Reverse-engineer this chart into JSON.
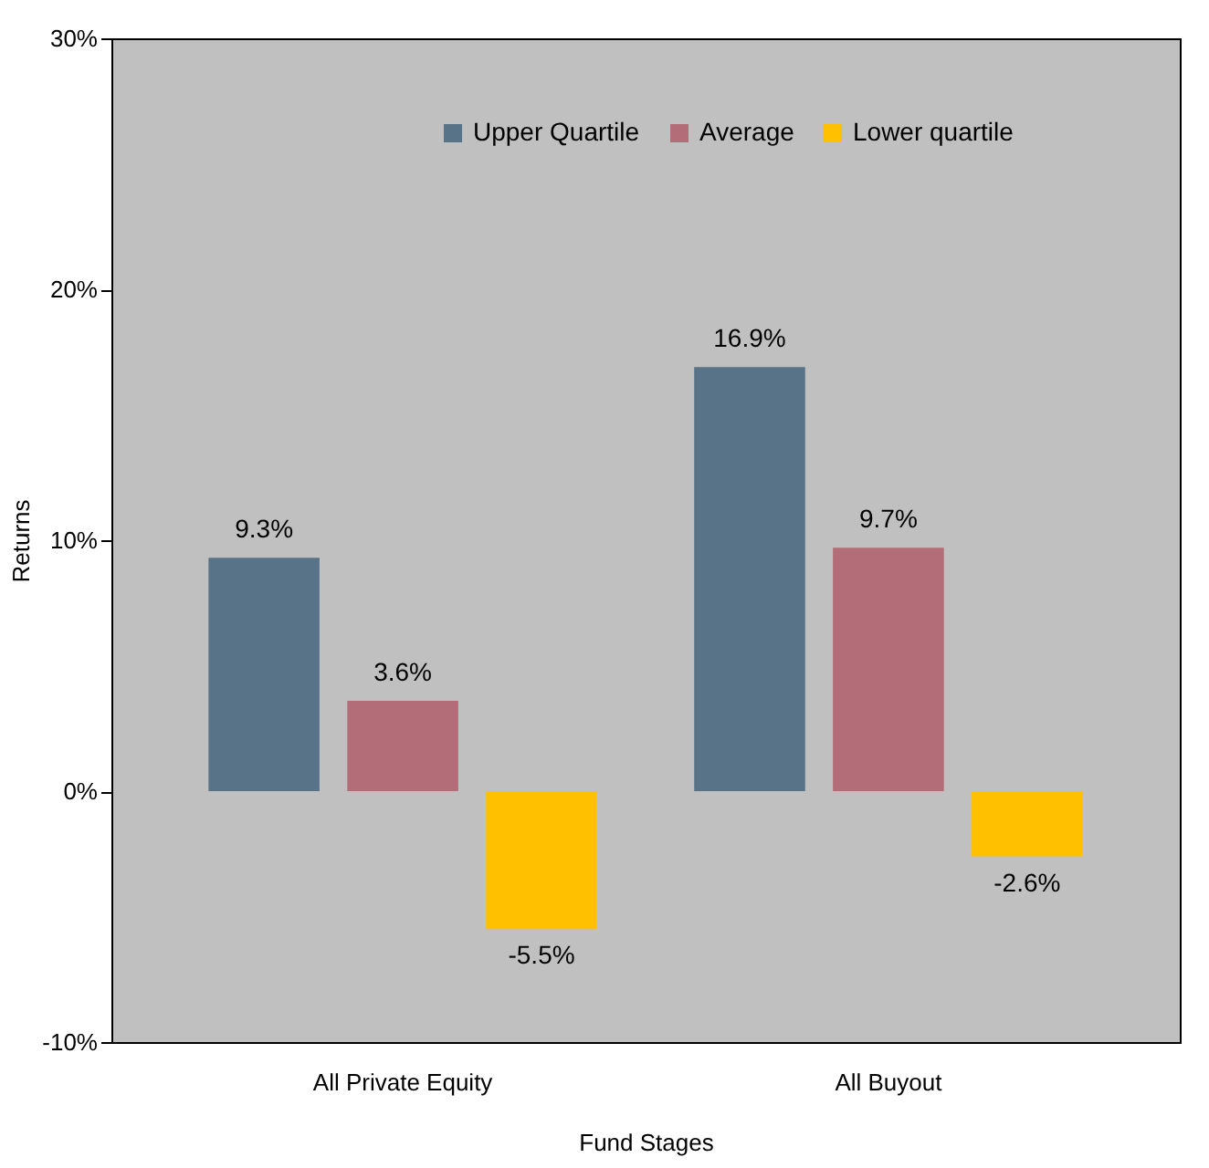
{
  "chart_data": {
    "type": "bar",
    "xlabel": "Fund Stages",
    "ylabel": "Returns",
    "categories": [
      "All Private Equity",
      "All Buyout"
    ],
    "series": [
      {
        "name": "Upper Quartile",
        "color": "#587388",
        "values": [
          9.3,
          16.9
        ],
        "value_labels": [
          "9.3%",
          "16.9%"
        ]
      },
      {
        "name": "Average",
        "color": "#b26d79",
        "values": [
          3.6,
          9.7
        ],
        "value_labels": [
          "3.6%",
          "9.7%"
        ]
      },
      {
        "name": "Lower quartile",
        "color": "#ffc000",
        "values": [
          -5.5,
          -2.6
        ],
        "value_labels": [
          "-5.5%",
          "-2.6%"
        ]
      }
    ],
    "ylim": [
      -10,
      30
    ],
    "yticks": [
      {
        "value": -10,
        "label": "-10%"
      },
      {
        "value": 0,
        "label": "0%"
      },
      {
        "value": 10,
        "label": "10%"
      },
      {
        "value": 20,
        "label": "20%"
      },
      {
        "value": 30,
        "label": "30%"
      }
    ],
    "legend": "top right",
    "grid": false
  }
}
